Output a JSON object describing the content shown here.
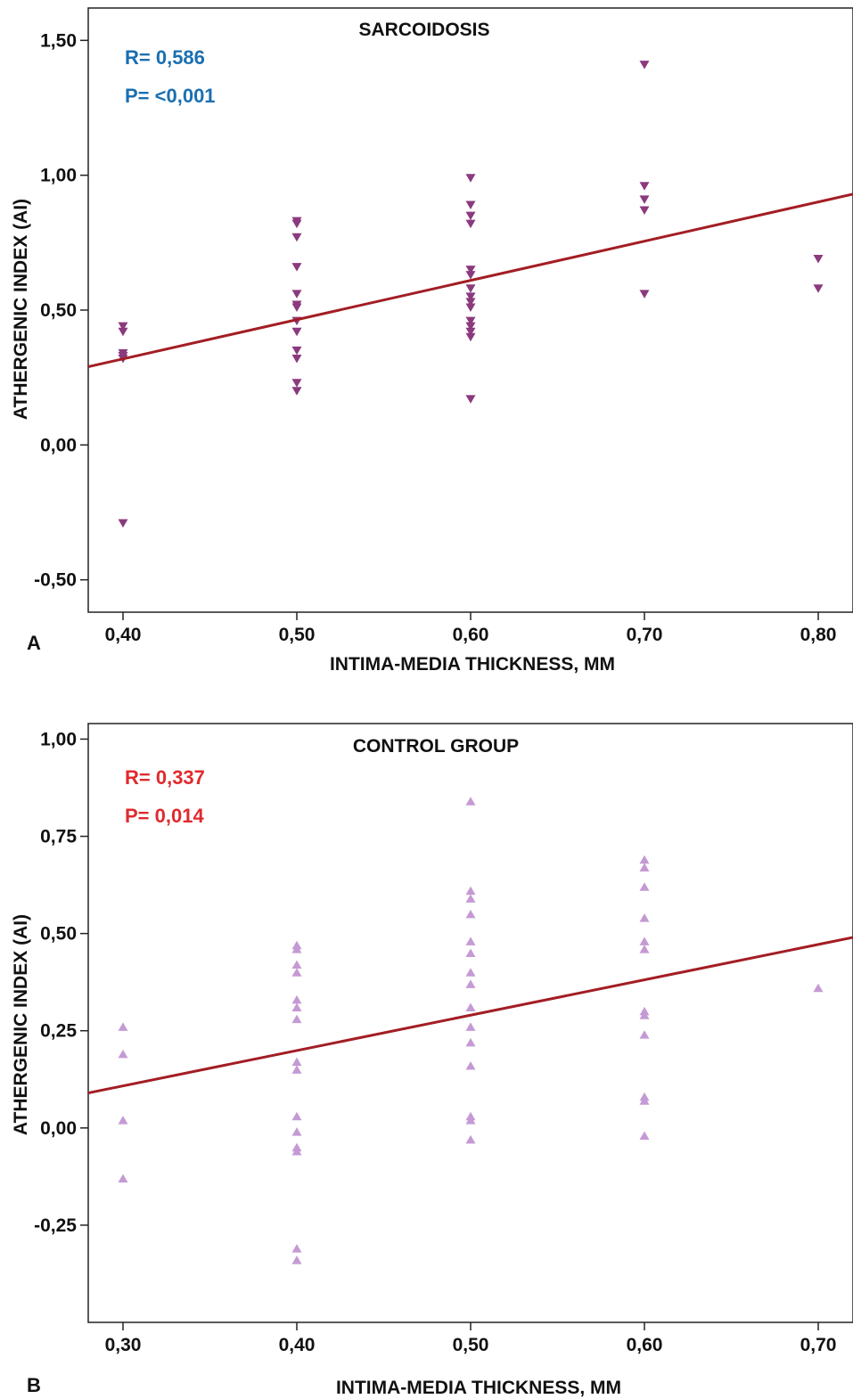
{
  "chart_data": [
    {
      "panel": "A",
      "type": "scatter",
      "title": "SARCOIDOSIS",
      "xlabel": "INTIMA-MEDIA THICKNESS, MM",
      "ylabel": "ATHERGENIC INDEX (AI)",
      "xlim": [
        0.38,
        0.82
      ],
      "ylim": [
        -0.62,
        1.62
      ],
      "xticks": [
        "0,40",
        "0,50",
        "0,60",
        "0,70",
        "0,80"
      ],
      "xtick_values": [
        0.4,
        0.5,
        0.6,
        0.7,
        0.8
      ],
      "yticks": [
        "1,50",
        "1,00",
        "0,50",
        "0,00",
        "-0,50"
      ],
      "ytick_values": [
        1.5,
        1.0,
        0.5,
        0.0,
        -0.5
      ],
      "grid": false,
      "stats": {
        "r": "R= 0,586",
        "p": "P= <0,001",
        "color": "#1a6fb0"
      },
      "marker": {
        "shape": "triangle-down",
        "color": "#8b3a7e"
      },
      "fit_line": {
        "color": "#a31d24",
        "x": [
          0.38,
          0.82
        ],
        "y": [
          0.29,
          0.93
        ]
      },
      "points": [
        [
          0.4,
          0.44
        ],
        [
          0.4,
          0.42
        ],
        [
          0.4,
          0.34
        ],
        [
          0.4,
          0.33
        ],
        [
          0.4,
          0.32
        ],
        [
          0.4,
          -0.29
        ],
        [
          0.5,
          0.83
        ],
        [
          0.5,
          0.82
        ],
        [
          0.5,
          0.77
        ],
        [
          0.5,
          0.66
        ],
        [
          0.5,
          0.56
        ],
        [
          0.5,
          0.52
        ],
        [
          0.5,
          0.51
        ],
        [
          0.5,
          0.46
        ],
        [
          0.5,
          0.42
        ],
        [
          0.5,
          0.35
        ],
        [
          0.5,
          0.32
        ],
        [
          0.5,
          0.23
        ],
        [
          0.5,
          0.2
        ],
        [
          0.6,
          0.99
        ],
        [
          0.6,
          0.89
        ],
        [
          0.6,
          0.85
        ],
        [
          0.6,
          0.82
        ],
        [
          0.6,
          0.65
        ],
        [
          0.6,
          0.63
        ],
        [
          0.6,
          0.58
        ],
        [
          0.6,
          0.55
        ],
        [
          0.6,
          0.53
        ],
        [
          0.6,
          0.51
        ],
        [
          0.6,
          0.46
        ],
        [
          0.6,
          0.44
        ],
        [
          0.6,
          0.42
        ],
        [
          0.6,
          0.4
        ],
        [
          0.6,
          0.17
        ],
        [
          0.7,
          1.41
        ],
        [
          0.7,
          0.96
        ],
        [
          0.7,
          0.91
        ],
        [
          0.7,
          0.87
        ],
        [
          0.7,
          0.56
        ],
        [
          0.8,
          0.69
        ],
        [
          0.8,
          0.58
        ]
      ]
    },
    {
      "panel": "B",
      "type": "scatter",
      "title": "CONTROL GROUP",
      "xlabel": "INTIMA-MEDIA THICKNESS, MM",
      "ylabel": "ATHERGENIC INDEX (AI)",
      "xlim": [
        0.28,
        0.72
      ],
      "ylim": [
        -0.5,
        1.04
      ],
      "xticks": [
        "0,30",
        "0,40",
        "0,50",
        "0,60",
        "0,70"
      ],
      "xtick_values": [
        0.3,
        0.4,
        0.5,
        0.6,
        0.7
      ],
      "yticks": [
        "1,00",
        "0,75",
        "0,50",
        "0,25",
        "0,00",
        "-0,25"
      ],
      "ytick_values": [
        1.0,
        0.75,
        0.5,
        0.25,
        0.0,
        -0.25
      ],
      "grid": false,
      "stats": {
        "r": "R= 0,337",
        "p": "P= 0,014",
        "color": "#e02a2e"
      },
      "marker": {
        "shape": "triangle-up",
        "color": "#c59ad4"
      },
      "fit_line": {
        "color": "#a31d24",
        "x": [
          0.28,
          0.72
        ],
        "y": [
          0.09,
          0.49
        ]
      },
      "points": [
        [
          0.3,
          0.26
        ],
        [
          0.3,
          0.19
        ],
        [
          0.3,
          0.02
        ],
        [
          0.3,
          -0.13
        ],
        [
          0.4,
          0.47
        ],
        [
          0.4,
          0.46
        ],
        [
          0.4,
          0.42
        ],
        [
          0.4,
          0.4
        ],
        [
          0.4,
          0.33
        ],
        [
          0.4,
          0.31
        ],
        [
          0.4,
          0.28
        ],
        [
          0.4,
          0.17
        ],
        [
          0.4,
          0.15
        ],
        [
          0.4,
          0.03
        ],
        [
          0.4,
          -0.01
        ],
        [
          0.4,
          -0.05
        ],
        [
          0.4,
          -0.06
        ],
        [
          0.4,
          -0.31
        ],
        [
          0.4,
          -0.34
        ],
        [
          0.5,
          0.84
        ],
        [
          0.5,
          0.61
        ],
        [
          0.5,
          0.59
        ],
        [
          0.5,
          0.55
        ],
        [
          0.5,
          0.48
        ],
        [
          0.5,
          0.45
        ],
        [
          0.5,
          0.4
        ],
        [
          0.5,
          0.37
        ],
        [
          0.5,
          0.31
        ],
        [
          0.5,
          0.26
        ],
        [
          0.5,
          0.22
        ],
        [
          0.5,
          0.16
        ],
        [
          0.5,
          0.03
        ],
        [
          0.5,
          0.02
        ],
        [
          0.5,
          -0.03
        ],
        [
          0.6,
          0.69
        ],
        [
          0.6,
          0.67
        ],
        [
          0.6,
          0.62
        ],
        [
          0.6,
          0.54
        ],
        [
          0.6,
          0.48
        ],
        [
          0.6,
          0.46
        ],
        [
          0.6,
          0.3
        ],
        [
          0.6,
          0.29
        ],
        [
          0.6,
          0.24
        ],
        [
          0.6,
          0.08
        ],
        [
          0.6,
          0.07
        ],
        [
          0.6,
          -0.02
        ],
        [
          0.7,
          0.36
        ]
      ]
    }
  ]
}
